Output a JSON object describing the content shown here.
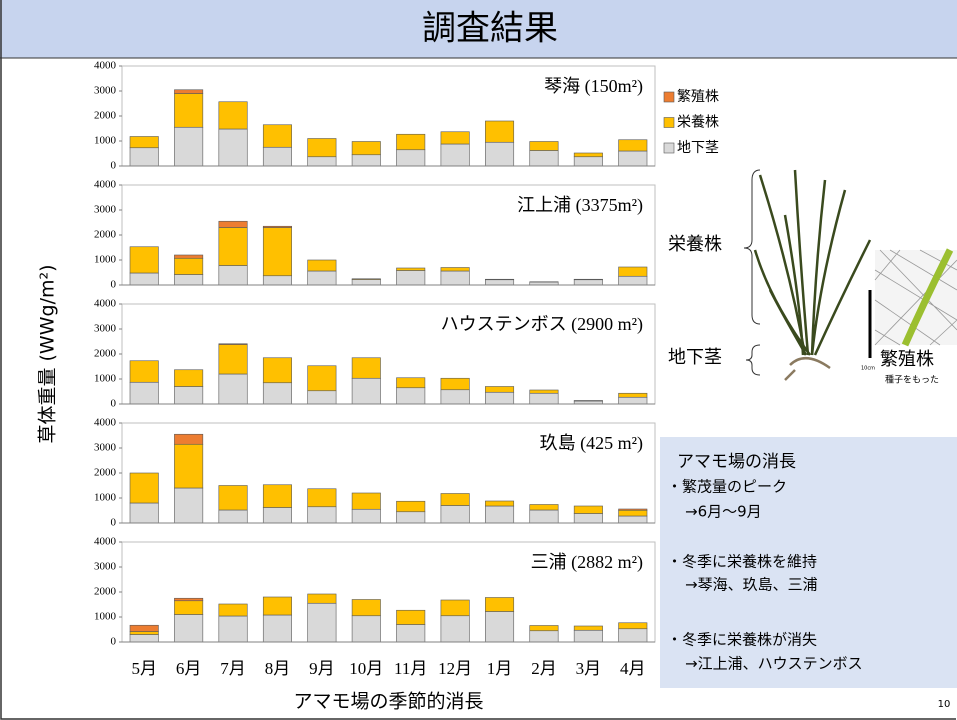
{
  "title": "調査結果",
  "chart_data": [
    {
      "type": "bar",
      "stacked": true,
      "title": "琴海 (150m²)",
      "ylim": [
        0,
        4000
      ],
      "yticks": [
        0,
        1000,
        2000,
        3000,
        4000
      ],
      "grid": false,
      "series": [
        {
          "name": "地下茎",
          "color": "#d9d9d9",
          "values": [
            730,
            1550,
            1480,
            750,
            370,
            450,
            650,
            880,
            950,
            620,
            370,
            600
          ]
        },
        {
          "name": "栄養株",
          "color": "#ffc000",
          "values": [
            450,
            1350,
            1090,
            900,
            730,
            530,
            620,
            490,
            850,
            360,
            150,
            450
          ]
        },
        {
          "name": "繁殖株",
          "color": "#ed7d31",
          "values": [
            0,
            150,
            0,
            0,
            0,
            0,
            0,
            0,
            0,
            0,
            0,
            0
          ]
        }
      ]
    },
    {
      "type": "bar",
      "stacked": true,
      "title": "江上浦 (3375m²)",
      "ylim": [
        0,
        4000
      ],
      "yticks": [
        0,
        1000,
        2000,
        3000,
        4000
      ],
      "grid": false,
      "series": [
        {
          "color": "#d9d9d9",
          "values": [
            480,
            420,
            780,
            370,
            560,
            220,
            580,
            560,
            210,
            120,
            210,
            350
          ]
        },
        {
          "color": "#ffc000",
          "values": [
            1050,
            650,
            1520,
            1930,
            440,
            30,
            100,
            140,
            20,
            10,
            20,
            370
          ]
        },
        {
          "color": "#ed7d31",
          "values": [
            0,
            130,
            250,
            50,
            0,
            0,
            0,
            0,
            0,
            0,
            0,
            0
          ]
        }
      ]
    },
    {
      "type": "bar",
      "stacked": true,
      "title": "ハウステンボス (2900 m²)",
      "ylabel": "草体重量 (WWg/m²)",
      "ylim": [
        0,
        4000
      ],
      "yticks": [
        0,
        1000,
        2000,
        3000,
        4000
      ],
      "grid": false,
      "series": [
        {
          "color": "#d9d9d9",
          "values": [
            870,
            700,
            1200,
            850,
            530,
            1030,
            650,
            570,
            470,
            430,
            120,
            270
          ]
        },
        {
          "color": "#ffc000",
          "values": [
            860,
            670,
            1180,
            1000,
            1000,
            820,
            400,
            460,
            230,
            130,
            20,
            160
          ]
        },
        {
          "color": "#ed7d31",
          "values": [
            0,
            0,
            30,
            0,
            0,
            0,
            0,
            0,
            0,
            0,
            0,
            0
          ]
        }
      ]
    },
    {
      "type": "bar",
      "stacked": true,
      "title": "玖島 (425 m²)",
      "ylim": [
        0,
        4000
      ],
      "yticks": [
        0,
        1000,
        2000,
        3000,
        4000
      ],
      "grid": false,
      "series": [
        {
          "color": "#d9d9d9",
          "values": [
            800,
            1400,
            520,
            620,
            650,
            550,
            450,
            700,
            680,
            520,
            380,
            280
          ]
        },
        {
          "color": "#ffc000",
          "values": [
            1200,
            1750,
            980,
            910,
            720,
            650,
            420,
            480,
            200,
            220,
            300,
            230
          ]
        },
        {
          "color": "#ed7d31",
          "values": [
            0,
            400,
            0,
            0,
            0,
            0,
            0,
            0,
            0,
            0,
            0,
            50
          ]
        }
      ]
    },
    {
      "type": "bar",
      "stacked": true,
      "title": "三浦 (2882 m²)",
      "xlabel": "アマモ場の季節的消長",
      "ylim": [
        0,
        4000
      ],
      "yticks": [
        0,
        1000,
        2000,
        3000,
        4000
      ],
      "grid": false,
      "categories": [
        "5月",
        "6月",
        "7月",
        "8月",
        "9月",
        "10月",
        "11月",
        "12月",
        "1月",
        "2月",
        "3月",
        "4月"
      ],
      "series": [
        {
          "color": "#d9d9d9",
          "values": [
            300,
            1100,
            1040,
            1080,
            1550,
            1050,
            700,
            1050,
            1220,
            450,
            470,
            530
          ]
        },
        {
          "color": "#ffc000",
          "values": [
            120,
            550,
            480,
            720,
            370,
            650,
            570,
            630,
            560,
            210,
            170,
            240
          ]
        },
        {
          "color": "#ed7d31",
          "values": [
            250,
            100,
            0,
            0,
            0,
            0,
            0,
            0,
            0,
            0,
            0,
            0
          ]
        }
      ]
    }
  ],
  "figure": {
    "vegetative_label": "栄養株",
    "rhizome_label": "地下茎",
    "reproductive_label": "繁殖株",
    "caption": "種子をもった",
    "scale": "10cm"
  },
  "notes": {
    "heading": "アマモ場の消長",
    "items": [
      {
        "point": "・繁茂量のピーク",
        "result": "→6月〜9月"
      },
      {
        "point": "・冬季に栄養株を維持",
        "result": "→琴海、玖島、三浦"
      },
      {
        "point": "・冬季に栄養株が消失",
        "result": "→江上浦、ハウステンボス"
      }
    ]
  },
  "page_number": "10"
}
